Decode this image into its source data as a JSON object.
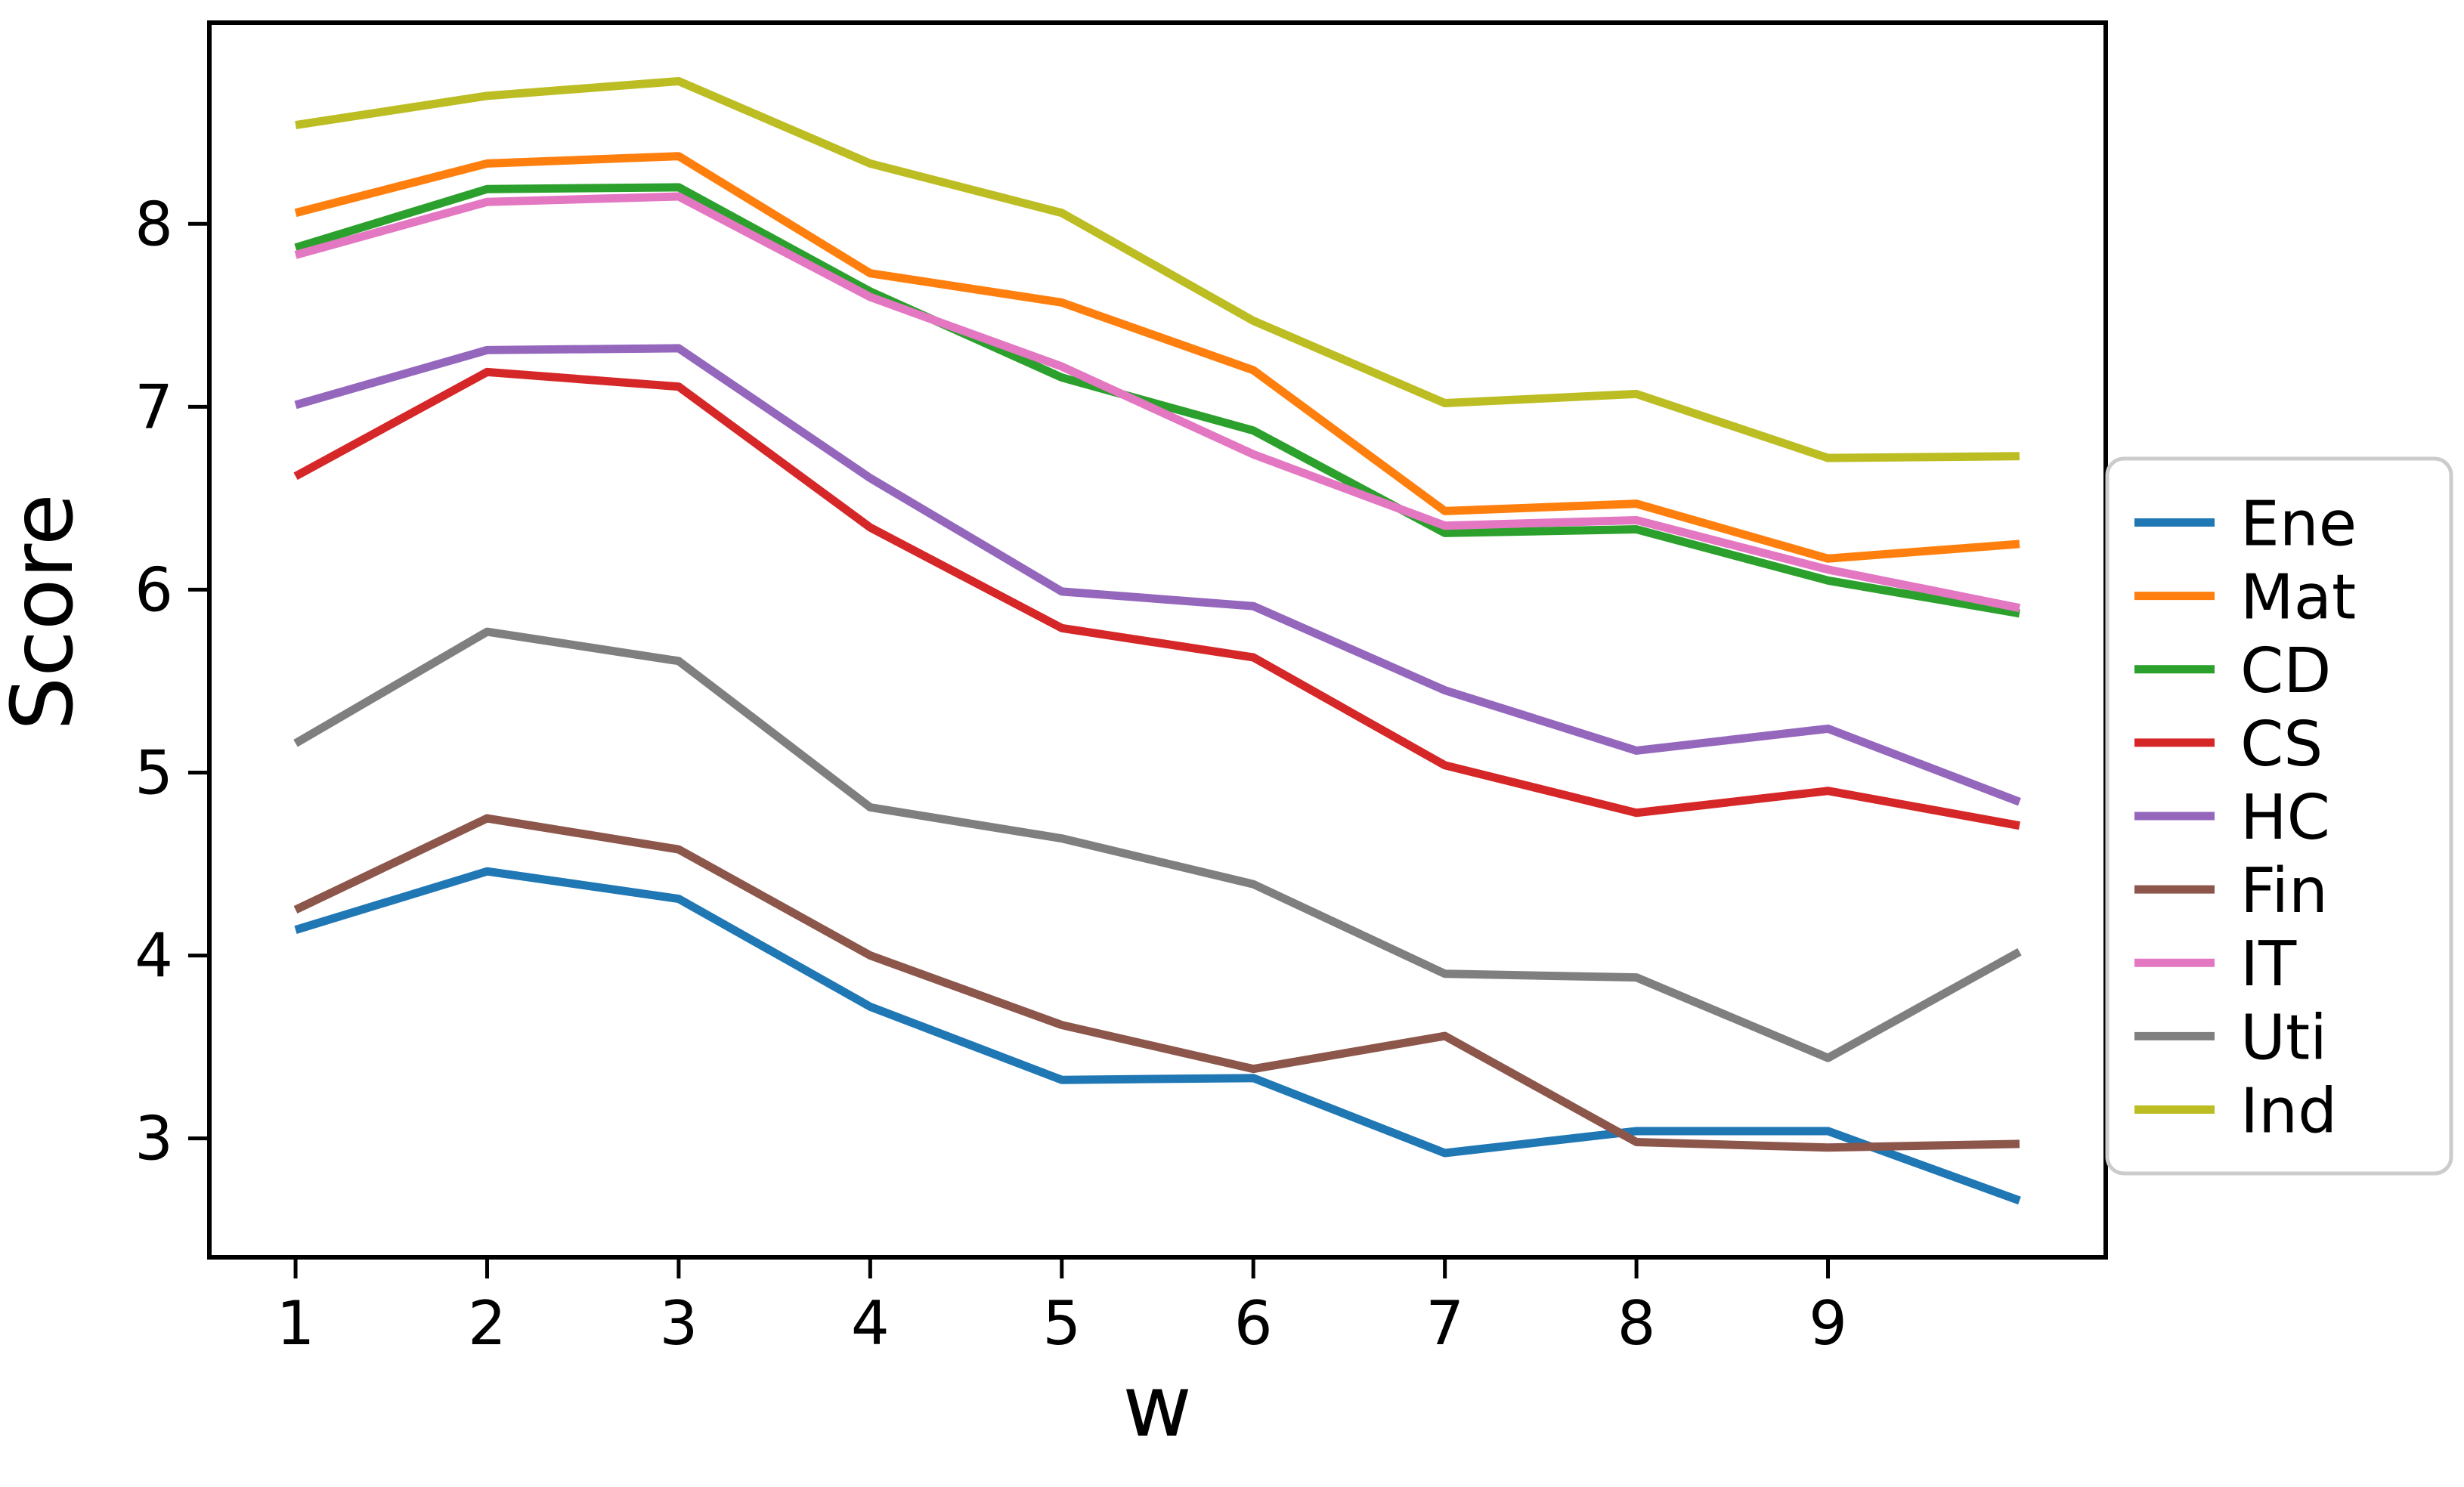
{
  "chart_data": {
    "type": "line",
    "title": "",
    "xlabel": "w",
    "ylabel": "Score",
    "x": [
      1,
      2,
      3,
      4,
      5,
      6,
      7,
      8,
      9,
      10
    ],
    "xticks": [
      1,
      2,
      3,
      4,
      5,
      6,
      7,
      8,
      9
    ],
    "yticks": [
      3,
      4,
      5,
      6,
      7,
      8
    ],
    "xlim": [
      0.55,
      10.45
    ],
    "ylim": [
      2.35,
      9.1
    ],
    "grid": false,
    "legend_position": "right",
    "series": [
      {
        "name": "Ene",
        "color": "#1f77b4",
        "values": [
          4.14,
          4.46,
          4.31,
          3.72,
          3.32,
          3.33,
          2.92,
          3.04,
          3.04,
          2.66
        ]
      },
      {
        "name": "Mat",
        "color": "#ff7f0e",
        "values": [
          8.06,
          8.33,
          8.37,
          7.73,
          7.57,
          7.2,
          6.43,
          6.47,
          6.17,
          6.25
        ]
      },
      {
        "name": "CD",
        "color": "#2ca02c",
        "values": [
          7.87,
          8.19,
          8.2,
          7.63,
          7.16,
          6.87,
          6.31,
          6.33,
          6.05,
          5.87
        ]
      },
      {
        "name": "CS",
        "color": "#d62728",
        "values": [
          6.62,
          7.19,
          7.11,
          6.34,
          5.79,
          5.63,
          5.04,
          4.78,
          4.9,
          4.71
        ]
      },
      {
        "name": "HC",
        "color": "#9467bd",
        "values": [
          7.01,
          7.31,
          7.32,
          6.61,
          5.99,
          5.91,
          5.45,
          5.12,
          5.24,
          4.84
        ]
      },
      {
        "name": "Fin",
        "color": "#8c564b",
        "values": [
          4.25,
          4.75,
          4.58,
          4.0,
          3.62,
          3.38,
          3.56,
          2.98,
          2.95,
          2.97
        ]
      },
      {
        "name": "IT",
        "color": "#e377c2",
        "values": [
          7.83,
          8.12,
          8.15,
          7.6,
          7.22,
          6.74,
          6.35,
          6.38,
          6.11,
          5.9
        ]
      },
      {
        "name": "Uti",
        "color": "#7f7f7f",
        "values": [
          5.16,
          5.77,
          5.61,
          4.81,
          4.64,
          4.39,
          3.9,
          3.88,
          3.44,
          4.02
        ]
      },
      {
        "name": "Ind",
        "color": "#bcbd22",
        "values": [
          8.54,
          8.7,
          8.78,
          8.33,
          8.06,
          7.47,
          7.02,
          7.07,
          6.72,
          6.73
        ]
      }
    ],
    "axis_color": "#000000",
    "legend_border_color": "#cccccc",
    "background_color": "#ffffff"
  }
}
